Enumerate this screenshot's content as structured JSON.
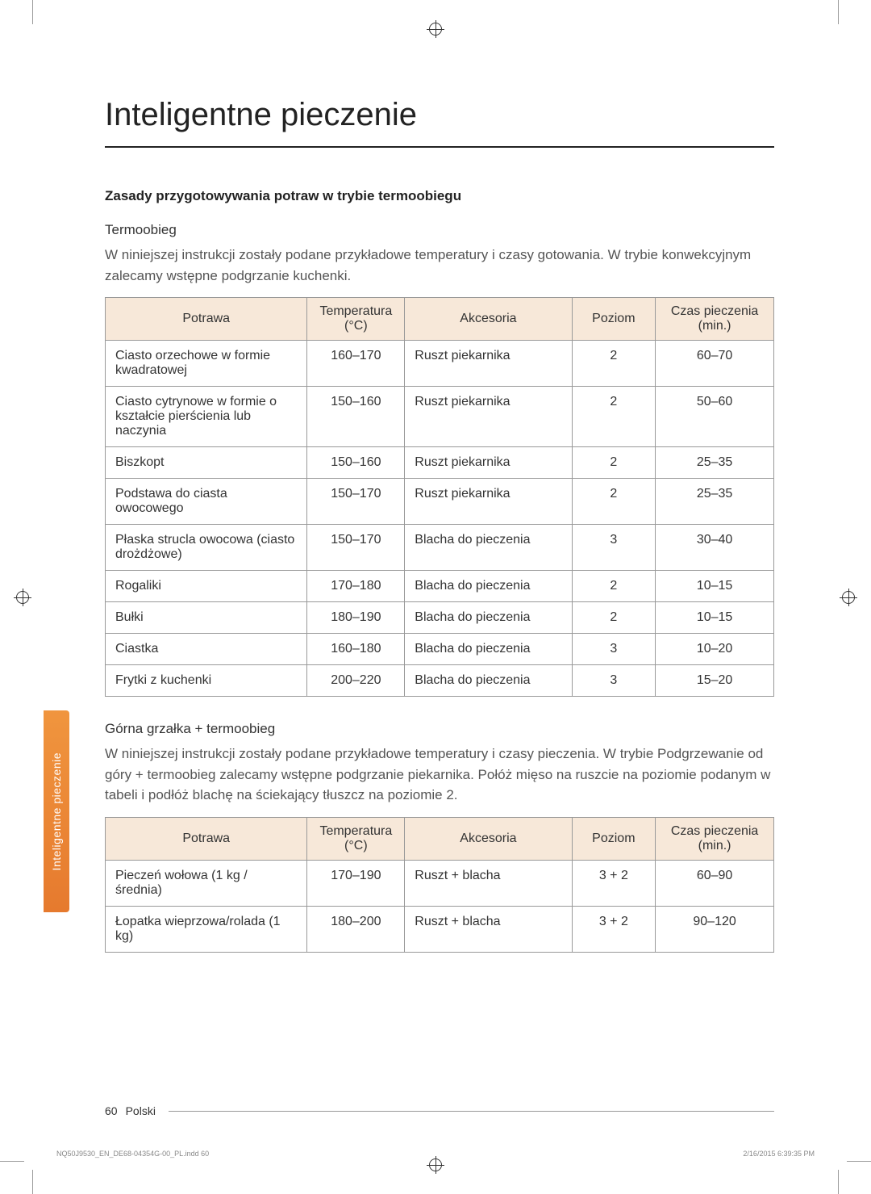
{
  "page": {
    "title": "Inteligentne pieczenie",
    "side_tab": "Inteligentne pieczenie",
    "page_number": "60",
    "language": "Polski",
    "indd_file": "NQ50J9530_EN_DE68-04354G-00_PL.indd   60",
    "indd_timestamp": "2/16/2015   6:39:35 PM"
  },
  "section1": {
    "heading": "Zasady przygotowywania potraw w trybie termoobiegu",
    "mode_label": "Termoobieg",
    "intro": "W niniejszej instrukcji zostały podane przykładowe temperatury i czasy gotowania. W trybie konwekcyjnym zalecamy wstępne podgrzanie kuchenki."
  },
  "section2": {
    "mode_label": "Górna grzałka + termoobieg",
    "intro": "W niniejszej instrukcji zostały podane przykładowe temperatury i czasy pieczenia. W trybie Podgrzewanie od góry + termoobieg zalecamy wstępne podgrzanie piekarnika. Połóż mięso na ruszcie na poziomie podanym w tabeli i podłóż blachę na ściekający tłuszcz na poziomie 2."
  },
  "table_headers": {
    "dish": "Potrawa",
    "temp": "Temperatura (°C)",
    "accessory": "Akcesoria",
    "level": "Poziom",
    "time": "Czas pieczenia (min.)"
  },
  "table1": {
    "header_bg": "#f7e8d9",
    "border_color": "#999999",
    "rows": [
      {
        "dish": "Ciasto orzechowe w formie kwadratowej",
        "temp": "160–170",
        "acc": "Ruszt piekarnika",
        "level": "2",
        "time": "60–70"
      },
      {
        "dish": "Ciasto cytrynowe w formie o kształcie pierścienia lub naczynia",
        "temp": "150–160",
        "acc": "Ruszt piekarnika",
        "level": "2",
        "time": "50–60"
      },
      {
        "dish": "Biszkopt",
        "temp": "150–160",
        "acc": "Ruszt piekarnika",
        "level": "2",
        "time": "25–35"
      },
      {
        "dish": "Podstawa do ciasta owocowego",
        "temp": "150–170",
        "acc": "Ruszt piekarnika",
        "level": "2",
        "time": "25–35"
      },
      {
        "dish": "Płaska strucla owocowa (ciasto drożdżowe)",
        "temp": "150–170",
        "acc": "Blacha do pieczenia",
        "level": "3",
        "time": "30–40"
      },
      {
        "dish": "Rogaliki",
        "temp": "170–180",
        "acc": "Blacha do pieczenia",
        "level": "2",
        "time": "10–15"
      },
      {
        "dish": "Bułki",
        "temp": "180–190",
        "acc": "Blacha do pieczenia",
        "level": "2",
        "time": "10–15"
      },
      {
        "dish": "Ciastka",
        "temp": "160–180",
        "acc": "Blacha do pieczenia",
        "level": "3",
        "time": "10–20"
      },
      {
        "dish": "Frytki z kuchenki",
        "temp": "200–220",
        "acc": "Blacha do pieczenia",
        "level": "3",
        "time": "15–20"
      }
    ]
  },
  "table2": {
    "rows": [
      {
        "dish": "Pieczeń wołowa (1 kg / średnia)",
        "temp": "170–190",
        "acc": "Ruszt + blacha",
        "level": "3 + 2",
        "time": "60–90"
      },
      {
        "dish": "Łopatka wieprzowa/rolada (1 kg)",
        "temp": "180–200",
        "acc": "Ruszt + blacha",
        "level": "3 + 2",
        "time": "90–120"
      }
    ]
  }
}
